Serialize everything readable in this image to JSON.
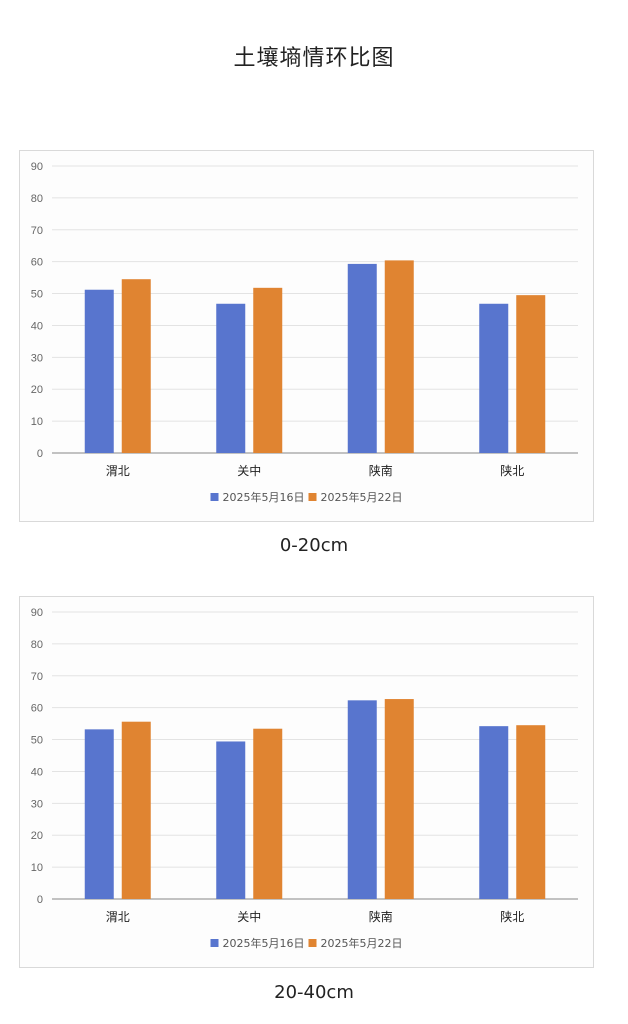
{
  "page": {
    "title": "土壤墒情环比图"
  },
  "charts_meta": [
    {
      "caption": "0-20cm"
    },
    {
      "caption": "20-40cm"
    }
  ],
  "colors": {
    "series1": "#5875ce",
    "series2": "#e08431",
    "grid": "#e3e3e3",
    "axis": "#888888"
  },
  "chart_data": [
    {
      "type": "bar",
      "title": "",
      "categories": [
        "渭北",
        "关中",
        "陕南",
        "陕北"
      ],
      "series": [
        {
          "name": "2025年5月16日",
          "values": [
            51.2,
            46.8,
            59.3,
            46.8
          ]
        },
        {
          "name": "2025年5月22日",
          "values": [
            54.5,
            51.8,
            60.4,
            49.5
          ]
        }
      ],
      "ylim": [
        0,
        90
      ],
      "yticks": [
        0,
        10,
        20,
        30,
        40,
        50,
        60,
        70,
        80,
        90
      ],
      "grid": true,
      "legend": "bottom-center",
      "xlabel": "",
      "ylabel": ""
    },
    {
      "type": "bar",
      "title": "",
      "categories": [
        "渭北",
        "关中",
        "陕南",
        "陕北"
      ],
      "series": [
        {
          "name": "2025年5月16日",
          "values": [
            53.2,
            49.4,
            62.3,
            54.2
          ]
        },
        {
          "name": "2025年5月22日",
          "values": [
            55.6,
            53.4,
            62.7,
            54.5
          ]
        }
      ],
      "ylim": [
        0,
        90
      ],
      "yticks": [
        0,
        10,
        20,
        30,
        40,
        50,
        60,
        70,
        80,
        90
      ],
      "grid": true,
      "legend": "bottom-center",
      "xlabel": "",
      "ylabel": ""
    }
  ]
}
